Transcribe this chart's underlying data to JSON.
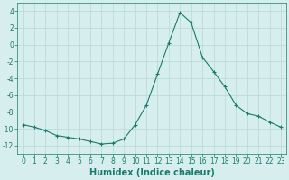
{
  "x": [
    0,
    1,
    2,
    3,
    4,
    5,
    6,
    7,
    8,
    9,
    10,
    11,
    12,
    13,
    14,
    15,
    16,
    17,
    18,
    19,
    20,
    21,
    22,
    23
  ],
  "y": [
    -9.5,
    -9.8,
    -10.2,
    -10.8,
    -11.0,
    -11.2,
    -11.5,
    -11.8,
    -11.7,
    -11.2,
    -9.5,
    -7.2,
    -3.5,
    0.2,
    3.8,
    2.6,
    -1.5,
    -3.2,
    -5.0,
    -7.2,
    -8.2,
    -8.5,
    -9.2,
    -9.8
  ],
  "line_color": "#1a7a6e",
  "marker": "+",
  "marker_size": 3,
  "marker_color": "#1a7a6e",
  "bg_color": "#d6eeee",
  "grid_color": "#b8d8d8",
  "xlabel": "Humidex (Indice chaleur)",
  "xlabel_fontsize": 7,
  "xlabel_bold": true,
  "ylim": [
    -13,
    5
  ],
  "xlim": [
    -0.5,
    23.5
  ],
  "yticks": [
    -12,
    -10,
    -8,
    -6,
    -4,
    -2,
    0,
    2,
    4
  ],
  "xticks": [
    0,
    1,
    2,
    3,
    4,
    5,
    6,
    7,
    8,
    9,
    10,
    11,
    12,
    13,
    14,
    15,
    16,
    17,
    18,
    19,
    20,
    21,
    22,
    23
  ],
  "tick_fontsize": 5.5,
  "tick_color": "#1a7a6e",
  "axis_color": "#1a7a6e",
  "linewidth": 0.8
}
